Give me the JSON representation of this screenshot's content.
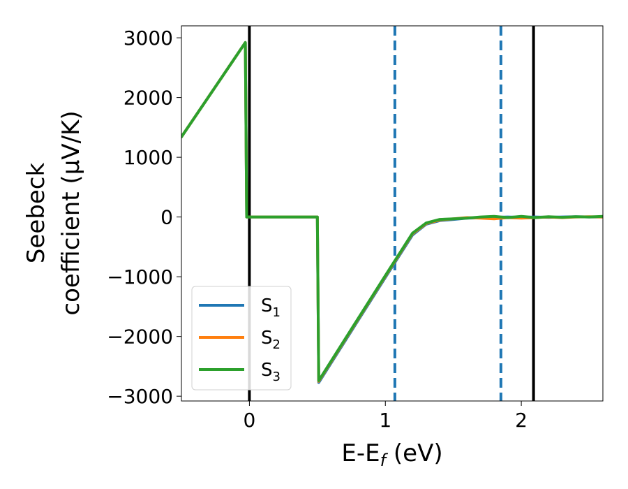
{
  "chart_data": {
    "type": "line",
    "title": "",
    "xlabel_main": "E-E",
    "xlabel_sub": "f",
    "xlabel_unit": " (eV)",
    "ylabel_line1": "Seebeck",
    "ylabel_line2": "coefficient  (μV/K)",
    "xlim": [
      -0.5,
      2.6
    ],
    "ylim": [
      -3080,
      3200
    ],
    "x_ticks": [
      0,
      1,
      2
    ],
    "x_tick_labels": [
      "0",
      "1",
      "2"
    ],
    "y_ticks": [
      -3000,
      -2000,
      -1000,
      0,
      1000,
      2000,
      3000
    ],
    "y_tick_labels": [
      "−3000",
      "−2000",
      "−1000",
      "0",
      "1000",
      "2000",
      "3000"
    ],
    "grid": false,
    "legend_position": "lower-left",
    "vertical_lines": [
      {
        "x": 0.0,
        "style": "solid",
        "color": "#000000"
      },
      {
        "x": 2.09,
        "style": "solid",
        "color": "#000000"
      },
      {
        "x": 1.07,
        "style": "dashed",
        "color": "#1f77b4"
      },
      {
        "x": 1.85,
        "style": "dashed",
        "color": "#1f77b4"
      }
    ],
    "series": [
      {
        "name": "S",
        "sub": "1",
        "color": "#1f77b4",
        "points": [
          [
            -0.5,
            1340
          ],
          [
            -0.03,
            2920
          ],
          [
            -0.02,
            0
          ],
          [
            0.5,
            0
          ],
          [
            0.51,
            -2770
          ],
          [
            1.0,
            -1010
          ],
          [
            1.2,
            -300
          ],
          [
            1.3,
            -120
          ],
          [
            1.4,
            -60
          ],
          [
            1.5,
            -40
          ],
          [
            1.6,
            -20
          ],
          [
            1.7,
            -15
          ],
          [
            1.8,
            -5
          ],
          [
            1.9,
            0
          ],
          [
            2.0,
            -5
          ],
          [
            2.1,
            0
          ],
          [
            2.2,
            -5
          ],
          [
            2.3,
            0
          ],
          [
            2.4,
            5
          ],
          [
            2.5,
            0
          ],
          [
            2.6,
            0
          ]
        ]
      },
      {
        "name": "S",
        "sub": "2",
        "color": "#ff7f0e",
        "points": [
          [
            -0.5,
            1340
          ],
          [
            -0.03,
            2920
          ],
          [
            -0.02,
            0
          ],
          [
            0.5,
            0
          ],
          [
            0.51,
            -2750
          ],
          [
            1.0,
            -990
          ],
          [
            1.2,
            -280
          ],
          [
            1.3,
            -110
          ],
          [
            1.4,
            -50
          ],
          [
            1.5,
            -30
          ],
          [
            1.6,
            -10
          ],
          [
            1.7,
            -20
          ],
          [
            1.8,
            -30
          ],
          [
            1.9,
            -10
          ],
          [
            2.0,
            -20
          ],
          [
            2.1,
            -10
          ],
          [
            2.2,
            0
          ],
          [
            2.3,
            -10
          ],
          [
            2.4,
            0
          ],
          [
            2.5,
            5
          ],
          [
            2.6,
            0
          ]
        ]
      },
      {
        "name": "S",
        "sub": "3",
        "color": "#2ca02c",
        "points": [
          [
            -0.5,
            1340
          ],
          [
            -0.03,
            2920
          ],
          [
            -0.02,
            0
          ],
          [
            0.5,
            0
          ],
          [
            0.51,
            -2740
          ],
          [
            1.0,
            -980
          ],
          [
            1.2,
            -270
          ],
          [
            1.3,
            -100
          ],
          [
            1.4,
            -40
          ],
          [
            1.5,
            -30
          ],
          [
            1.6,
            -20
          ],
          [
            1.7,
            0
          ],
          [
            1.8,
            10
          ],
          [
            1.9,
            -10
          ],
          [
            2.0,
            10
          ],
          [
            2.1,
            -10
          ],
          [
            2.2,
            5
          ],
          [
            2.3,
            -5
          ],
          [
            2.4,
            5
          ],
          [
            2.5,
            0
          ],
          [
            2.6,
            10
          ]
        ]
      }
    ]
  }
}
